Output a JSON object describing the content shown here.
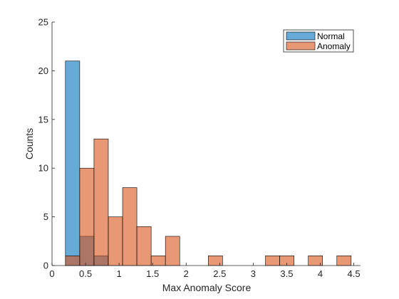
{
  "chart_data": {
    "type": "bar",
    "subtype": "overlaid-histogram",
    "xlabel": "Max Anomaly Score",
    "ylabel": "Counts",
    "xlim": [
      0,
      4.6
    ],
    "ylim": [
      0,
      25
    ],
    "grid": false,
    "legend_position": "top-right",
    "x_ticks": [
      0,
      0.5,
      1,
      1.5,
      2,
      2.5,
      3,
      3.5,
      4,
      4.5
    ],
    "x_tick_labels": [
      "0",
      "0.5",
      "1",
      "1.5",
      "2",
      "2.5",
      "3",
      "3.5",
      "4",
      "4.5"
    ],
    "y_ticks": [
      0,
      5,
      10,
      15,
      20,
      25
    ],
    "y_tick_labels": [
      "0",
      "5",
      "10",
      "15",
      "20",
      "25"
    ],
    "bin_edges": [
      0.2,
      0.413,
      0.626,
      0.839,
      1.052,
      1.265,
      1.478,
      1.691,
      1.904,
      2.117,
      2.33,
      2.543,
      2.756,
      2.969,
      3.182,
      3.395,
      3.608,
      3.821,
      4.034,
      4.247,
      4.46
    ],
    "series": [
      {
        "name": "Normal",
        "color": "#0072BD",
        "values": [
          21,
          3,
          1,
          0,
          0,
          0,
          0,
          0,
          0,
          0,
          0,
          0,
          0,
          0,
          0,
          0,
          0,
          0,
          0,
          0
        ]
      },
      {
        "name": "Anomaly",
        "color": "#D95319",
        "values": [
          1,
          10,
          13,
          5,
          8,
          4,
          1,
          3,
          0,
          0,
          1,
          0,
          0,
          0,
          1,
          1,
          0,
          1,
          0,
          1
        ]
      }
    ],
    "bar_opacity": 0.6
  }
}
